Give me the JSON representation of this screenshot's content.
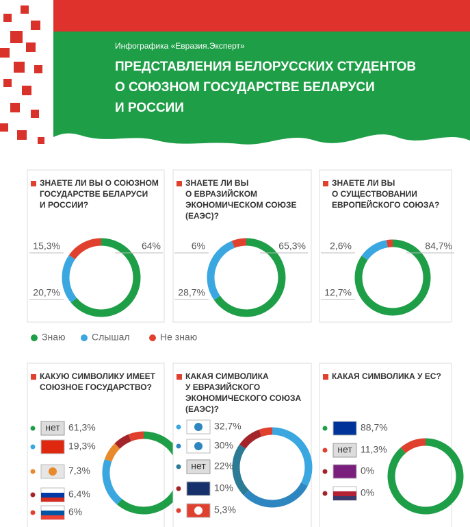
{
  "header": {
    "subtitle": "Инфографика «Евразия.Эксперт»",
    "title_lines": [
      "ПРЕДСТАВЛЕНИЯ БЕЛОРУССКИХ СТУДЕНТОВ",
      "О СОЮЗНОМ ГОСУДАРСТВЕ БЕЛАРУСИ",
      "И РОССИИ"
    ]
  },
  "legend": {
    "items": [
      "Знаю",
      "Слышал",
      "Не знаю"
    ],
    "colors": [
      "#1e9e47",
      "#3aa7e0",
      "#e0412f"
    ]
  },
  "chart_data": [
    {
      "type": "pie",
      "title_lines": [
        "ЗНАЕТЕ ЛИ ВЫ О СОЮЗНОМ",
        "ГОСУДАРСТВЕ БЕЛАРУСИ",
        "И РОССИИ?"
      ],
      "values": [
        64,
        20.7,
        15.3
      ],
      "value_labels": [
        "64%",
        "20,7%",
        "15,3%"
      ],
      "colors": [
        "#1e9e47",
        "#3aa7e0",
        "#e0412f"
      ]
    },
    {
      "type": "pie",
      "title_lines": [
        "ЗНАЕТЕ ЛИ ВЫ",
        "О ЕВРАЗИЙСКОМ",
        "ЭКОНОМИЧЕСКОМ СОЮЗЕ",
        "(ЕАЭС)?"
      ],
      "values": [
        65.3,
        28.7,
        6
      ],
      "value_labels": [
        "65,3%",
        "28,7%",
        "6%"
      ],
      "colors": [
        "#1e9e47",
        "#3aa7e0",
        "#e0412f"
      ]
    },
    {
      "type": "pie",
      "title_lines": [
        "ЗНАЕТЕ ЛИ ВЫ",
        "О СУЩЕСТВОВАНИИ",
        "ЕВРОПЕЙСКОГО СОЮЗА?"
      ],
      "values": [
        84.7,
        12.7,
        2.6
      ],
      "value_labels": [
        "84,7%",
        "12,7%",
        "2,6%"
      ],
      "colors": [
        "#1e9e47",
        "#3aa7e0",
        "#e0412f"
      ]
    },
    {
      "type": "pie",
      "title_lines": [
        "КАКУЮ СИМВОЛИКУ ИМЕЕТ",
        "СОЮЗНОЕ ГОСУДАРСТВО?"
      ],
      "categories": [
        "нет",
        null,
        null,
        null,
        null
      ],
      "values": [
        61.3,
        19.3,
        7.3,
        6.4,
        6
      ],
      "value_labels": [
        "61,3%",
        "19,3%",
        "7,3%",
        "6,4%",
        "6%"
      ],
      "colors": [
        "#1e9e47",
        "#3aa7e0",
        "#e8892b",
        "#a3252b",
        "#e0412f"
      ]
    },
    {
      "type": "pie",
      "title_lines": [
        "КАКАЯ СИМВОЛИКА",
        "У ЕВРАЗИЙСКОГО",
        "ЭКОНОМИЧЕСКОГО СОЮЗА",
        "(ЕАЭС)?"
      ],
      "categories": [
        null,
        null,
        "нет",
        null,
        null
      ],
      "values": [
        32.7,
        30,
        22,
        10,
        5.3
      ],
      "value_labels": [
        "32,7%",
        "30%",
        "22%",
        "10%",
        "5,3%"
      ],
      "colors": [
        "#3aa7e0",
        "#2e86c1",
        "#2b7a96",
        "#a3252b",
        "#e0412f"
      ]
    },
    {
      "type": "pie",
      "title_lines": [
        "КАКАЯ СИМВОЛИКА У ЕС?"
      ],
      "categories": [
        null,
        "нет",
        null,
        null
      ],
      "values": [
        88.7,
        11.3,
        0,
        0
      ],
      "value_labels": [
        "88,7%",
        "11,3%",
        "0%",
        "0%"
      ],
      "colors": [
        "#1e9e47",
        "#e0412f",
        "#a3252b",
        "#a3252b"
      ]
    }
  ]
}
